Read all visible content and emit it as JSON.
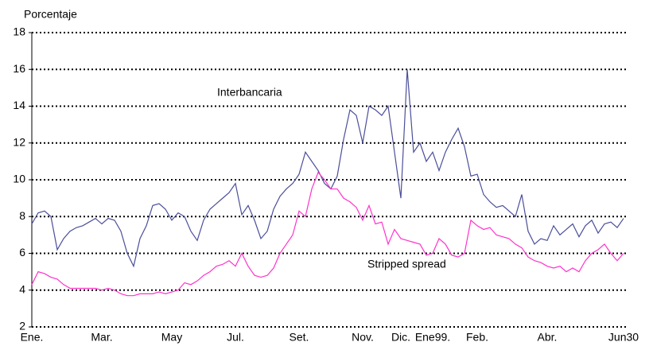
{
  "chart_data": {
    "type": "line",
    "y_label": "Porcentaje",
    "categories": [
      "Ene.",
      null,
      null,
      null,
      null,
      null,
      null,
      null,
      null,
      null,
      null,
      "Mar.",
      null,
      null,
      null,
      null,
      null,
      null,
      null,
      null,
      null,
      null,
      "May",
      null,
      null,
      null,
      null,
      null,
      null,
      null,
      null,
      null,
      "Jul.",
      null,
      null,
      null,
      null,
      null,
      null,
      null,
      null,
      null,
      "Set.",
      null,
      null,
      null,
      null,
      null,
      null,
      null,
      null,
      null,
      "Nov.",
      null,
      null,
      null,
      null,
      null,
      "Dic.",
      null,
      null,
      null,
      null,
      "Ene99.",
      null,
      null,
      null,
      null,
      null,
      null,
      "Feb.",
      null,
      null,
      null,
      null,
      null,
      null,
      null,
      null,
      null,
      null,
      "Abr.",
      null,
      null,
      null,
      null,
      null,
      null,
      null,
      null,
      null,
      null,
      null,
      "Jun30"
    ],
    "series": [
      {
        "name": "Interbancaria",
        "color": "#4b4f9a",
        "values": [
          7.6,
          8.2,
          8.3,
          8.0,
          6.2,
          6.8,
          7.2,
          7.4,
          7.5,
          7.7,
          7.9,
          7.6,
          7.9,
          7.8,
          7.2,
          6.0,
          5.3,
          6.8,
          7.5,
          8.6,
          8.7,
          8.4,
          7.8,
          8.2,
          8.0,
          7.2,
          6.7,
          7.8,
          8.4,
          8.7,
          9.0,
          9.3,
          9.8,
          8.1,
          8.6,
          7.8,
          6.8,
          7.2,
          8.4,
          9.1,
          9.5,
          9.8,
          10.3,
          11.5,
          11.0,
          10.5,
          9.8,
          9.5,
          10.2,
          12.2,
          13.8,
          13.5,
          12.0,
          14.0,
          13.8,
          13.5,
          14.0,
          11.5,
          9.0,
          16.0,
          11.5,
          12.0,
          11.0,
          11.5,
          10.5,
          11.5,
          12.2,
          12.8,
          11.8,
          10.2,
          10.3,
          9.2,
          8.8,
          8.5,
          8.6,
          8.3,
          8.0,
          9.2,
          7.2,
          6.5,
          6.8,
          6.7,
          7.5,
          7.0,
          7.3,
          7.6,
          6.9,
          7.5,
          7.8,
          7.1,
          7.6,
          7.7,
          7.4,
          7.9
        ]
      },
      {
        "name": "Stripped spread",
        "color": "#ff33cc",
        "values": [
          4.3,
          5.0,
          4.9,
          4.7,
          4.6,
          4.3,
          4.1,
          4.1,
          4.1,
          4.1,
          4.1,
          4.0,
          4.1,
          4.0,
          3.8,
          3.7,
          3.7,
          3.8,
          3.8,
          3.8,
          3.9,
          3.8,
          3.9,
          4.0,
          4.4,
          4.3,
          4.5,
          4.8,
          5.0,
          5.3,
          5.4,
          5.6,
          5.3,
          6.0,
          5.3,
          4.8,
          4.7,
          4.8,
          5.2,
          6.0,
          6.5,
          7.0,
          8.3,
          8.0,
          9.5,
          10.4,
          10.0,
          9.5,
          9.5,
          9.0,
          8.8,
          8.5,
          7.8,
          8.6,
          7.6,
          7.7,
          6.5,
          7.3,
          6.8,
          6.7,
          6.6,
          6.5,
          5.9,
          6.0,
          6.8,
          6.5,
          5.9,
          5.8,
          6.0,
          7.8,
          7.5,
          7.3,
          7.4,
          7.0,
          6.9,
          6.8,
          6.5,
          6.3,
          5.8,
          5.6,
          5.5,
          5.3,
          5.2,
          5.3,
          5.0,
          5.2,
          5.0,
          5.6,
          6.0,
          6.2,
          6.5,
          6.0,
          5.6,
          6.0
        ]
      }
    ],
    "ylim": [
      2,
      18
    ],
    "yticks": [
      2,
      4,
      6,
      8,
      10,
      12,
      14,
      16,
      18
    ],
    "grid": true
  }
}
